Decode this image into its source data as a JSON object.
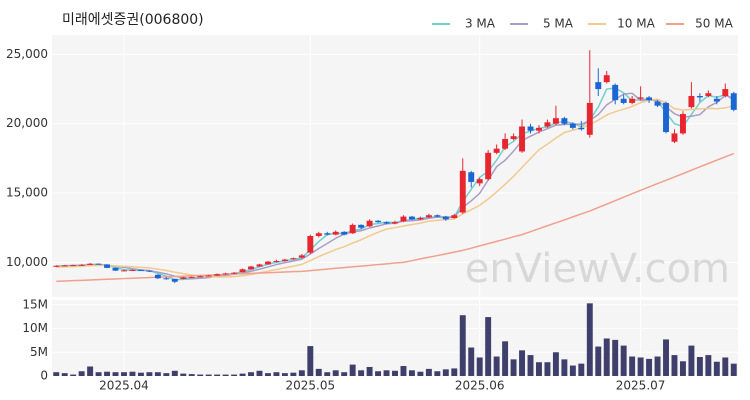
{
  "chart_data": [
    {
      "type": "candlestick",
      "title": "미래에셋증권(006800)",
      "watermark": "enViewV.com",
      "up_color": "#e8262f",
      "down_color": "#1c66d4",
      "open": [
        9700,
        9750,
        9780,
        9800,
        9820,
        9900,
        9850,
        9600,
        9400,
        9420,
        9450,
        9400,
        9100,
        8850,
        8800,
        8800,
        8900,
        8950,
        9000,
        9050,
        9150,
        9200,
        9300,
        9500,
        9700,
        9850,
        10050,
        10100,
        10250,
        10350,
        10700,
        11900,
        12100,
        12000,
        12200,
        12100,
        12700,
        12600,
        13000,
        12900,
        12800,
        12950,
        13300,
        13100,
        13250,
        13400,
        13300,
        13200,
        13600,
        16500,
        15700,
        16000,
        17900,
        18200,
        18900,
        18000,
        19800,
        19500,
        19800,
        20000,
        20400,
        20000,
        19700,
        19200,
        23000,
        23000,
        22800,
        21800,
        21500,
        21800,
        21900,
        21600,
        21500,
        18700,
        19300,
        21200,
        22000,
        22000,
        21800,
        22000,
        22200
      ],
      "high": [
        9800,
        9820,
        9830,
        9870,
        9950,
        9920,
        9870,
        9620,
        9480,
        9500,
        9480,
        9420,
        9150,
        8950,
        8820,
        8950,
        8980,
        9050,
        9100,
        9200,
        9250,
        9300,
        9550,
        9750,
        9900,
        10100,
        10180,
        10250,
        10350,
        10600,
        12000,
        12200,
        12200,
        12300,
        12250,
        12800,
        12750,
        13100,
        13050,
        12950,
        13000,
        13400,
        13350,
        13300,
        13500,
        13450,
        13350,
        13500,
        17500,
        16600,
        16100,
        18100,
        18500,
        19300,
        19300,
        20300,
        20000,
        19900,
        20300,
        21300,
        20500,
        20100,
        20200,
        25300,
        24000,
        23800,
        22900,
        22100,
        22000,
        22700,
        22000,
        21700,
        21600,
        19600,
        20900,
        23000,
        22200,
        22400,
        22000,
        22900,
        22300
      ],
      "low": [
        9680,
        9720,
        9750,
        9780,
        9800,
        9830,
        9580,
        9380,
        9350,
        9400,
        9380,
        9300,
        8800,
        8750,
        8500,
        8780,
        8860,
        8920,
        8980,
        9020,
        9100,
        9150,
        9280,
        9480,
        9680,
        9820,
        10000,
        10050,
        10200,
        10300,
        10600,
        11800,
        11950,
        11950,
        11950,
        12050,
        12400,
        12550,
        12850,
        12750,
        12750,
        12900,
        13050,
        13050,
        13200,
        13250,
        13000,
        13150,
        13500,
        15400,
        15500,
        15900,
        17800,
        18100,
        18800,
        17900,
        19300,
        19300,
        19700,
        19900,
        19900,
        19600,
        19500,
        19000,
        22000,
        22900,
        21400,
        21400,
        21400,
        21700,
        21500,
        21200,
        19300,
        18600,
        19200,
        21100,
        21600,
        21900,
        21400,
        21900,
        20900
      ],
      "close": [
        9750,
        9780,
        9800,
        9820,
        9900,
        9850,
        9600,
        9400,
        9420,
        9450,
        9400,
        9350,
        8850,
        8800,
        8600,
        8900,
        8950,
        9000,
        9050,
        9150,
        9200,
        9250,
        9500,
        9700,
        9850,
        10050,
        10100,
        10200,
        10300,
        10500,
        11900,
        12100,
        12000,
        12200,
        12000,
        12700,
        12500,
        13000,
        12900,
        12800,
        12900,
        13300,
        13100,
        13200,
        13400,
        13300,
        13100,
        13400,
        16600,
        15800,
        16000,
        17900,
        18200,
        18900,
        19100,
        19800,
        19500,
        19700,
        20100,
        20400,
        20000,
        19700,
        19600,
        21500,
        22500,
        23500,
        21700,
        21500,
        21800,
        21900,
        21700,
        21300,
        19400,
        19300,
        20700,
        22000,
        21900,
        22200,
        21600,
        22500,
        21000
      ],
      "series": [
        {
          "name": "3 MA",
          "color": "#6fd0d0",
          "values": [
            9730,
            9760,
            9780,
            9800,
            9840,
            9860,
            9780,
            9620,
            9470,
            9420,
            9420,
            9400,
            9200,
            9000,
            8750,
            8770,
            8820,
            8950,
            9000,
            9070,
            9130,
            9200,
            9320,
            9480,
            9680,
            9870,
            10000,
            10120,
            10200,
            10330,
            10900,
            11500,
            12000,
            12100,
            12070,
            12300,
            12400,
            12730,
            12800,
            12900,
            12870,
            13000,
            13100,
            13200,
            13230,
            13300,
            13270,
            13270,
            14370,
            15270,
            16130,
            16570,
            17370,
            18330,
            18730,
            19270,
            19470,
            19670,
            19770,
            20070,
            20170,
            20030,
            19770,
            20270,
            21200,
            22500,
            22570,
            22230,
            21670,
            21730,
            21800,
            21630,
            20800,
            20000,
            19800,
            20670,
            21530,
            22030,
            21900,
            22100,
            21700
          ]
        },
        {
          "name": "5 MA",
          "color": "#a99cc8",
          "values": [
            9700,
            9720,
            9750,
            9780,
            9810,
            9830,
            9790,
            9710,
            9640,
            9540,
            9460,
            9400,
            9290,
            9170,
            9000,
            8900,
            8820,
            8850,
            8900,
            9010,
            9070,
            9130,
            9230,
            9360,
            9500,
            9670,
            9840,
            9980,
            10100,
            10230,
            10600,
            11000,
            11360,
            11740,
            12040,
            12200,
            12280,
            12480,
            12620,
            12780,
            12820,
            12980,
            13000,
            13060,
            13180,
            13260,
            13220,
            13280,
            13960,
            14440,
            14980,
            15940,
            16900,
            17360,
            18020,
            18780,
            19100,
            19400,
            19640,
            19900,
            19940,
            19980,
            19960,
            20240,
            20660,
            21360,
            21760,
            22140,
            22200,
            21680,
            21720,
            21640,
            21220,
            20720,
            20480,
            20540,
            20660,
            21220,
            21540,
            22040,
            21840
          ]
        },
        {
          "name": "10 MA",
          "color": "#f2c98f",
          "values": [
            9650,
            9670,
            9690,
            9720,
            9750,
            9780,
            9770,
            9740,
            9710,
            9680,
            9640,
            9600,
            9510,
            9410,
            9290,
            9190,
            9090,
            9010,
            8970,
            8940,
            8940,
            8970,
            9030,
            9120,
            9250,
            9370,
            9480,
            9600,
            9720,
            9860,
            10130,
            10420,
            10670,
            10920,
            11130,
            11390,
            11630,
            11910,
            12170,
            12400,
            12500,
            12620,
            12730,
            12830,
            12970,
            13030,
            13090,
            13130,
            13500,
            13800,
            14110,
            14570,
            15080,
            15630,
            16200,
            16850,
            17490,
            18120,
            18530,
            18970,
            19360,
            19540,
            19690,
            19930,
            20260,
            20630,
            20870,
            21050,
            21250,
            21520,
            21690,
            21770,
            21500,
            21080,
            20990,
            21030,
            21070,
            21110,
            21080,
            21140,
            21310
          ]
        },
        {
          "name": "50 MA",
          "color": "#f0a08c",
          "values": [
            8630,
            8650,
            8680,
            8700,
            8730,
            8750,
            8780,
            8800,
            8830,
            8850,
            8880,
            8900,
            8930,
            8950,
            8980,
            9000,
            9030,
            9050,
            9080,
            9100,
            9130,
            9150,
            9180,
            9200,
            9230,
            9250,
            9280,
            9300,
            9330,
            9350,
            9400,
            9460,
            9510,
            9570,
            9620,
            9680,
            9730,
            9780,
            9840,
            9890,
            9950,
            10000,
            10120,
            10250,
            10370,
            10490,
            10610,
            10740,
            10860,
            11020,
            11190,
            11350,
            11510,
            11670,
            11840,
            12000,
            12210,
            12430,
            12640,
            12850,
            13060,
            13280,
            13490,
            13700,
            13950,
            14200,
            14450,
            14700,
            14950,
            15200,
            15440,
            15680,
            15920,
            16160,
            16400,
            16650,
            16890,
            17130,
            17370,
            17610,
            17850
          ]
        }
      ],
      "ylim": [
        7500,
        26400
      ],
      "yticks": [
        {
          "value": 10000,
          "label": "10,000"
        },
        {
          "value": 15000,
          "label": "15,000"
        },
        {
          "value": 20000,
          "label": "20,000"
        },
        {
          "value": 25000,
          "label": "25,000"
        }
      ],
      "grid": true,
      "legend": "top-right"
    },
    {
      "type": "bar",
      "color": "#3f3f6b",
      "categories": [
        null,
        null,
        null,
        null,
        null,
        null,
        null,
        null,
        "2025.04",
        null,
        null,
        null,
        null,
        null,
        null,
        null,
        null,
        null,
        null,
        null,
        null,
        null,
        null,
        null,
        null,
        null,
        null,
        null,
        null,
        null,
        "2025.05",
        null,
        null,
        null,
        null,
        null,
        null,
        null,
        null,
        null,
        null,
        null,
        null,
        null,
        null,
        null,
        null,
        null,
        null,
        null,
        "2025.06",
        null,
        null,
        null,
        null,
        null,
        null,
        null,
        null,
        null,
        null,
        null,
        null,
        null,
        null,
        null,
        null,
        null,
        null,
        "2025.07",
        null,
        null,
        null,
        null,
        null,
        null,
        null,
        null,
        null,
        null,
        null
      ],
      "values": [
        800000,
        600000,
        300000,
        1000000,
        2000000,
        800000,
        900000,
        800000,
        800000,
        900000,
        700000,
        800000,
        800000,
        600000,
        1100000,
        500000,
        400000,
        300000,
        300000,
        300000,
        300000,
        300000,
        500000,
        800000,
        1100000,
        600000,
        800000,
        600000,
        700000,
        1200000,
        6300000,
        1500000,
        800000,
        1200000,
        800000,
        2400000,
        1200000,
        1900000,
        1000000,
        1200000,
        1100000,
        2100000,
        1200000,
        900000,
        1500000,
        1000000,
        1400000,
        1600000,
        12800000,
        6000000,
        3900000,
        12400000,
        4100000,
        7300000,
        3500000,
        5400000,
        4400000,
        2900000,
        2900000,
        5000000,
        3500000,
        2200000,
        2600000,
        15300000,
        6200000,
        7900000,
        7600000,
        6400000,
        4100000,
        3900000,
        3600000,
        4100000,
        7700000,
        4400000,
        3100000,
        6400000,
        4000000,
        4400000,
        3000000,
        3900000,
        2600000
      ],
      "ylim": [
        0,
        16000000
      ],
      "yticks": [
        0,
        {
          "value": 5000000,
          "label": "5M"
        },
        {
          "value": 10000000,
          "label": "10M"
        },
        {
          "value": 15000000,
          "label": "15M"
        }
      ],
      "grid": true
    }
  ]
}
